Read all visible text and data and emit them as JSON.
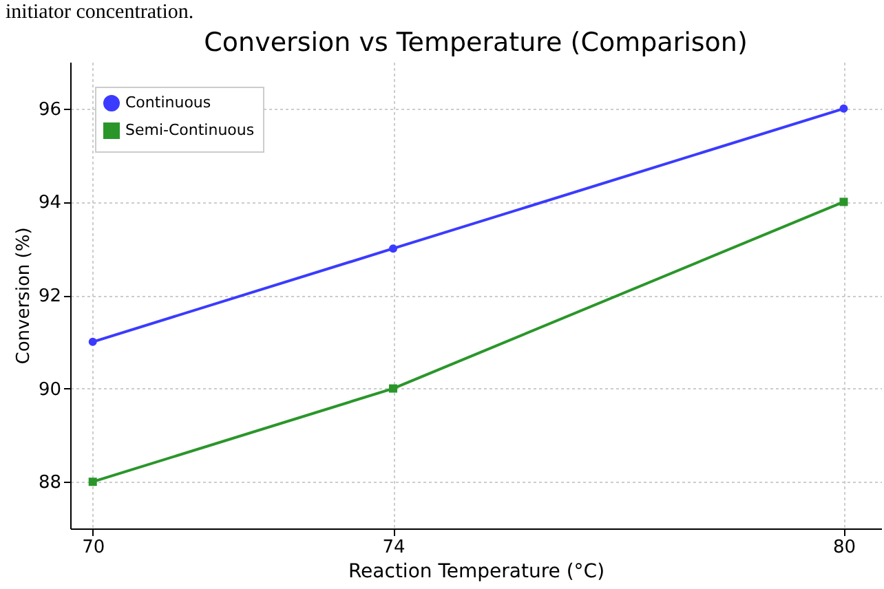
{
  "chart_data": {
    "type": "line",
    "title": "Conversion vs Temperature (Comparison)",
    "xlabel": "Reaction Temperature (°C)",
    "ylabel": "Conversion (%)",
    "annotations": [
      "initiator concentration."
    ],
    "x": [
      70,
      74,
      80
    ],
    "series": [
      {
        "name": "Continuous",
        "color": "#3b3bff",
        "values": [
          91,
          93,
          96
        ],
        "marker": "circle"
      },
      {
        "name": "Semi-Continuous",
        "color": "#2a962a",
        "values": [
          88,
          90,
          94
        ],
        "marker": "square"
      }
    ],
    "xlim": [
      69.7,
      80.5
    ],
    "xticks": [
      70,
      74,
      80
    ],
    "ylim": [
      87,
      97
    ],
    "yticks": [
      88,
      90,
      92,
      94,
      96
    ],
    "grid": true,
    "legend": "top left",
    "line_style": "solid"
  }
}
